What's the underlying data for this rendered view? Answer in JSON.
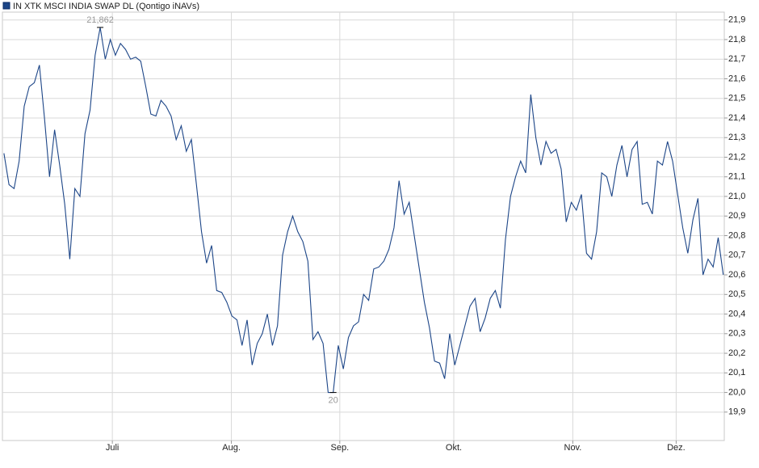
{
  "chart_data": {
    "type": "line",
    "series": [
      {
        "name": "IN XTK MSCI INDIA SWAP DL (Qontigo iNAVs)",
        "color": "#1c4587",
        "values": [
          21.22,
          21.06,
          21.04,
          21.18,
          21.46,
          21.56,
          21.58,
          21.67,
          21.4,
          21.1,
          21.34,
          21.16,
          20.96,
          20.68,
          21.04,
          21.0,
          21.32,
          21.44,
          21.72,
          21.862,
          21.7,
          21.8,
          21.72,
          21.78,
          21.75,
          21.7,
          21.71,
          21.69,
          21.56,
          21.42,
          21.41,
          21.49,
          21.46,
          21.41,
          21.29,
          21.36,
          21.23,
          21.29,
          21.06,
          20.82,
          20.66,
          20.75,
          20.52,
          20.51,
          20.46,
          20.39,
          20.37,
          20.24,
          20.37,
          20.14,
          20.25,
          20.3,
          20.4,
          20.24,
          20.34,
          20.7,
          20.82,
          20.9,
          20.82,
          20.77,
          20.67,
          20.27,
          20.31,
          20.25,
          20.0,
          20.0,
          20.24,
          20.12,
          20.28,
          20.34,
          20.36,
          20.5,
          20.47,
          20.63,
          20.64,
          20.67,
          20.73,
          20.84,
          21.08,
          20.91,
          20.97,
          20.8,
          20.63,
          20.46,
          20.33,
          20.16,
          20.15,
          20.07,
          20.3,
          20.14,
          20.24,
          20.34,
          20.44,
          20.48,
          20.31,
          20.38,
          20.48,
          20.52,
          20.43,
          20.78,
          21.0,
          21.1,
          21.18,
          21.12,
          21.52,
          21.3,
          21.16,
          21.28,
          21.22,
          21.24,
          21.14,
          20.87,
          20.97,
          20.93,
          21.01,
          20.71,
          20.68,
          20.82,
          21.12,
          21.1,
          21.0,
          21.16,
          21.26,
          21.1,
          21.24,
          21.28,
          20.96,
          20.97,
          20.91,
          21.18,
          21.16,
          21.28,
          21.18,
          21.01,
          20.84,
          20.71,
          20.88,
          20.99,
          20.6,
          20.68,
          20.64,
          20.79,
          20.6
        ]
      }
    ],
    "xlim": [
      -0.3,
      142.2
    ],
    "xticks": [
      {
        "value": 21.4,
        "label": "Juli"
      },
      {
        "value": 44.9,
        "label": "Aug."
      },
      {
        "value": 66.3,
        "label": "Sep."
      },
      {
        "value": 88.8,
        "label": "Okt."
      },
      {
        "value": 112.3,
        "label": "Nov."
      },
      {
        "value": 132.7,
        "label": "Dez."
      }
    ],
    "ylim": [
      19.755,
      21.94
    ],
    "yticks": [
      {
        "value": 19.9,
        "label": "19,9"
      },
      {
        "value": 20.0,
        "label": "20,0"
      },
      {
        "value": 20.1,
        "label": "20,1"
      },
      {
        "value": 20.2,
        "label": "20,2"
      },
      {
        "value": 20.3,
        "label": "20,3"
      },
      {
        "value": 20.4,
        "label": "20,4"
      },
      {
        "value": 20.5,
        "label": "20,5"
      },
      {
        "value": 20.6,
        "label": "20,6"
      },
      {
        "value": 20.7,
        "label": "20,7"
      },
      {
        "value": 20.8,
        "label": "20,8"
      },
      {
        "value": 20.9,
        "label": "20,9"
      },
      {
        "value": 21.0,
        "label": "21,0"
      },
      {
        "value": 21.1,
        "label": "21,1"
      },
      {
        "value": 21.2,
        "label": "21,2"
      },
      {
        "value": 21.3,
        "label": "21,3"
      },
      {
        "value": 21.4,
        "label": "21,4"
      },
      {
        "value": 21.5,
        "label": "21,5"
      },
      {
        "value": 21.6,
        "label": "21,6"
      },
      {
        "value": 21.7,
        "label": "21,7"
      },
      {
        "value": 21.8,
        "label": "21,8"
      },
      {
        "value": 21.9,
        "label": "21,9"
      }
    ],
    "grid": true,
    "annotations": [
      {
        "x": 19,
        "text": "21,862",
        "position": "above"
      },
      {
        "x": 65,
        "text": "20",
        "position": "below"
      }
    ]
  }
}
